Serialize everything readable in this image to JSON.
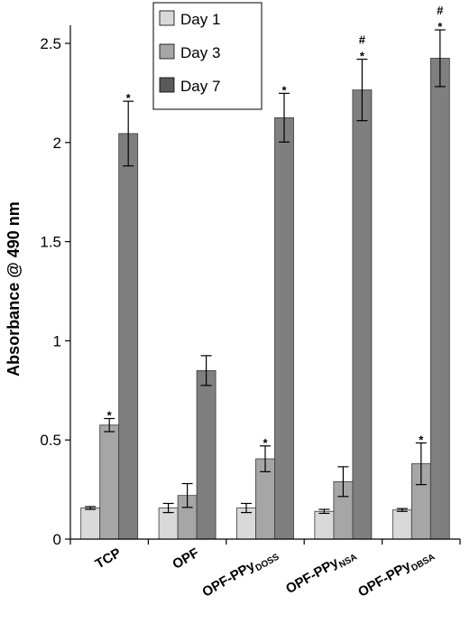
{
  "chart_data": {
    "type": "bar",
    "ylabel": "Absorbance @ 490 nm",
    "ylim": [
      0,
      2.5
    ],
    "yticks": [
      "0",
      "0.5",
      "1",
      "1.5",
      "2",
      "2.5"
    ],
    "categories": [
      {
        "main": "TCP",
        "sub": ""
      },
      {
        "main": "OPF",
        "sub": ""
      },
      {
        "main": "OPF-PPy",
        "sub": "DOSS"
      },
      {
        "main": "OPF-PPy",
        "sub": "NSA"
      },
      {
        "main": "OPF-PPy",
        "sub": "DBSA"
      }
    ],
    "series": [
      {
        "name": "Day 1",
        "color": "#d9d9d9",
        "values": [
          0.157,
          0.157,
          0.157,
          0.14,
          0.147
        ],
        "errors": [
          0.007,
          0.023,
          0.023,
          0.01,
          0.007
        ]
      },
      {
        "name": "Day 3",
        "color": "#a6a6a6",
        "values": [
          0.575,
          0.22,
          0.405,
          0.29,
          0.38
        ],
        "errors": [
          0.033,
          0.06,
          0.065,
          0.075,
          0.105
        ]
      },
      {
        "name": "Day 7",
        "color": "#7f7f7f",
        "values": [
          2.045,
          0.85,
          2.125,
          2.265,
          2.425
        ],
        "errors": [
          0.163,
          0.075,
          0.123,
          0.155,
          0.143
        ]
      }
    ],
    "annotations": [
      {
        "category": 0,
        "series": 1,
        "marks": [
          "*"
        ]
      },
      {
        "category": 0,
        "series": 2,
        "marks": [
          "*"
        ]
      },
      {
        "category": 2,
        "series": 1,
        "marks": [
          "*"
        ]
      },
      {
        "category": 2,
        "series": 2,
        "marks": [
          "*"
        ]
      },
      {
        "category": 3,
        "series": 2,
        "marks": [
          "#",
          "*"
        ]
      },
      {
        "category": 4,
        "series": 1,
        "marks": [
          "*"
        ]
      },
      {
        "category": 4,
        "series": 2,
        "marks": [
          "#",
          "*"
        ]
      }
    ],
    "legend": {
      "placement": "top-center",
      "items": [
        {
          "label": "Day 1",
          "color": "#d9d9d9"
        },
        {
          "label": "Day 3",
          "color": "#a6a6a6"
        },
        {
          "label": "Day 7",
          "color": "#5a5a5a"
        }
      ]
    },
    "grid": false
  }
}
